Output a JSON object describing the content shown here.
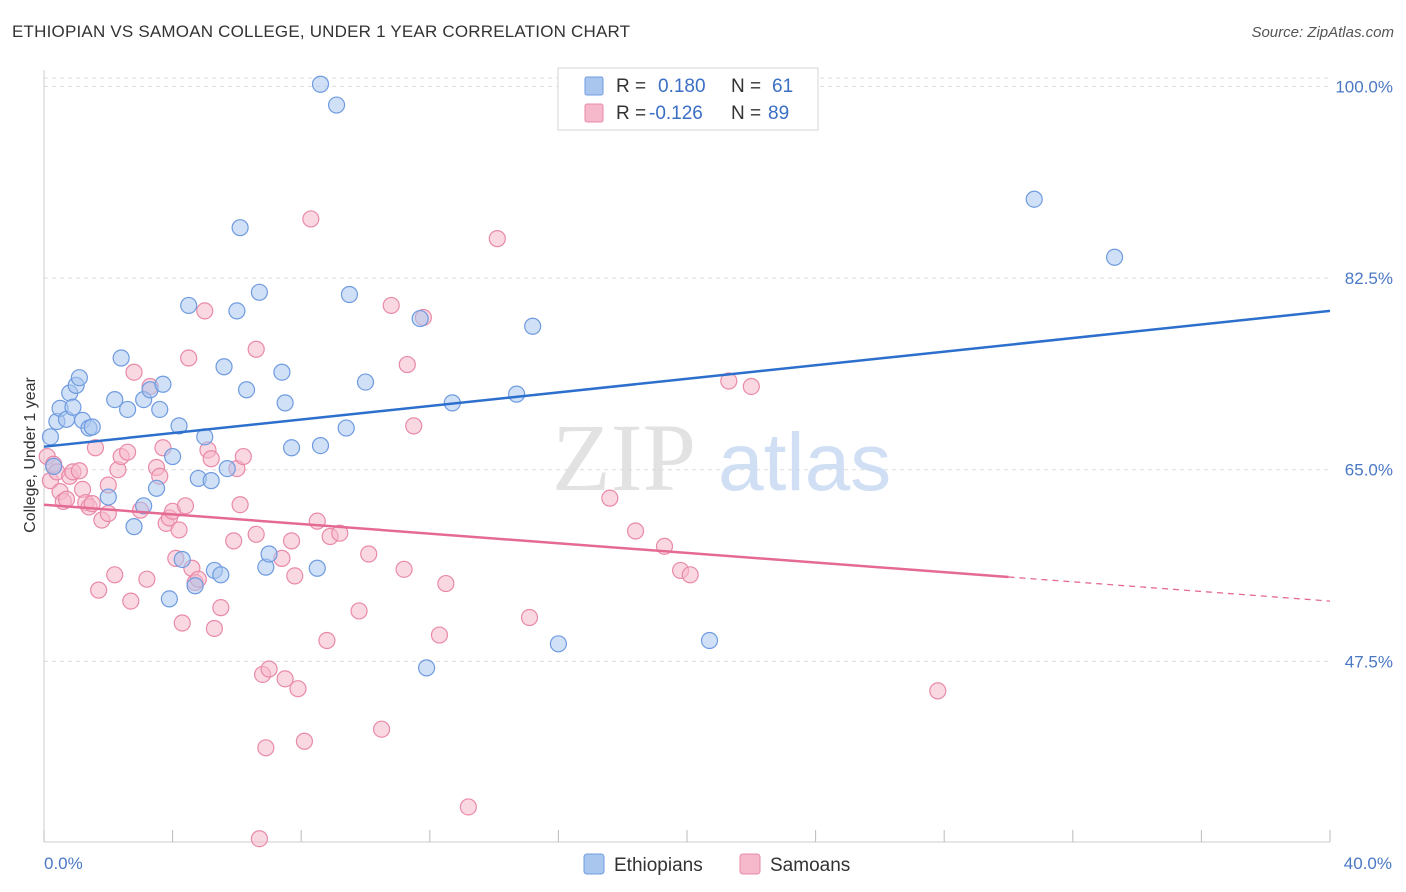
{
  "header": {
    "title": "ETHIOPIAN VS SAMOAN COLLEGE, UNDER 1 YEAR CORRELATION CHART",
    "source": "Source: ZipAtlas.com"
  },
  "watermark": {
    "zip": "ZIP",
    "atlas": "atlas"
  },
  "legend_top": {
    "rows": [
      {
        "r_label": "R =",
        "r_value": "0.180",
        "n_label": "N =",
        "n_value": "61",
        "color": "#a9c6ef",
        "stroke": "#6f9be0"
      },
      {
        "r_label": "R =",
        "r_value": "-0.126",
        "n_label": "N =",
        "n_value": "89",
        "color": "#f6b8cb",
        "stroke": "#e98aa8"
      }
    ]
  },
  "legend_bottom": {
    "items": [
      {
        "label": "Ethiopians",
        "color": "#a9c6ef",
        "stroke": "#6f9be0"
      },
      {
        "label": "Samoans",
        "color": "#f6b8cb",
        "stroke": "#e98aa8"
      }
    ]
  },
  "chart_data": {
    "type": "scatter",
    "xlabel": "",
    "ylabel": "College, Under 1 year",
    "xlim": [
      0,
      40
    ],
    "ylim": [
      31,
      101.5
    ],
    "x_tick_labels": [
      {
        "value": 0,
        "label": "0.0%"
      },
      {
        "value": 40,
        "label": "40.0%"
      }
    ],
    "x_minor_ticks": [
      0,
      4,
      8,
      12,
      16,
      20,
      24,
      28,
      32,
      36,
      40
    ],
    "y_ticks": [
      {
        "value": 100,
        "label": "100.0%"
      },
      {
        "value": 82.5,
        "label": "82.5%"
      },
      {
        "value": 65,
        "label": "65.0%"
      },
      {
        "value": 47.5,
        "label": "47.5%"
      }
    ],
    "grid": true,
    "legend_position": "top-center",
    "series": [
      {
        "name": "Ethiopians",
        "color": "#6f9be0",
        "fill": "#a9c6ef",
        "line_color": "#2c6fcd",
        "trend": {
          "x": [
            0,
            40
          ],
          "y": [
            67.1,
            79.5
          ],
          "dash_from": null
        },
        "points": [
          [
            0.2,
            68.0
          ],
          [
            0.3,
            65.3
          ],
          [
            0.4,
            69.4
          ],
          [
            0.5,
            70.6
          ],
          [
            0.7,
            69.6
          ],
          [
            0.8,
            72.0
          ],
          [
            0.9,
            70.7
          ],
          [
            1.0,
            72.7
          ],
          [
            1.1,
            73.4
          ],
          [
            1.2,
            69.5
          ],
          [
            1.4,
            68.8
          ],
          [
            1.5,
            68.9
          ],
          [
            2.0,
            62.5
          ],
          [
            2.2,
            71.4
          ],
          [
            2.4,
            75.2
          ],
          [
            2.6,
            70.5
          ],
          [
            2.8,
            59.8
          ],
          [
            3.1,
            71.4
          ],
          [
            3.1,
            61.7
          ],
          [
            3.3,
            72.3
          ],
          [
            3.5,
            63.3
          ],
          [
            3.6,
            70.5
          ],
          [
            3.7,
            72.8
          ],
          [
            3.9,
            53.2
          ],
          [
            4.0,
            66.2
          ],
          [
            4.2,
            69.0
          ],
          [
            4.3,
            56.8
          ],
          [
            4.5,
            80.0
          ],
          [
            4.7,
            54.4
          ],
          [
            4.8,
            64.2
          ],
          [
            5.0,
            68.0
          ],
          [
            5.2,
            64.0
          ],
          [
            5.3,
            55.8
          ],
          [
            5.5,
            55.4
          ],
          [
            5.6,
            74.4
          ],
          [
            5.7,
            65.1
          ],
          [
            6.0,
            79.5
          ],
          [
            6.1,
            87.1
          ],
          [
            6.3,
            72.3
          ],
          [
            6.7,
            81.2
          ],
          [
            6.9,
            56.1
          ],
          [
            7.0,
            57.3
          ],
          [
            7.4,
            73.9
          ],
          [
            7.5,
            71.1
          ],
          [
            7.7,
            67.0
          ],
          [
            8.5,
            56.0
          ],
          [
            8.6,
            67.2
          ],
          [
            8.6,
            100.2
          ],
          [
            9.1,
            98.3
          ],
          [
            9.4,
            68.8
          ],
          [
            9.5,
            81.0
          ],
          [
            10.0,
            73.0
          ],
          [
            11.7,
            78.8
          ],
          [
            11.9,
            46.9
          ],
          [
            12.7,
            71.1
          ],
          [
            14.7,
            71.9
          ],
          [
            15.2,
            78.1
          ],
          [
            16.0,
            49.1
          ],
          [
            20.7,
            49.4
          ],
          [
            30.8,
            89.7
          ],
          [
            33.3,
            84.4
          ]
        ]
      },
      {
        "name": "Samoans",
        "color": "#e98aa8",
        "fill": "#f6b8cb",
        "line_color": "#e56a93",
        "trend": {
          "x": [
            0,
            40
          ],
          "y": [
            61.8,
            53.0
          ],
          "dash_from": 30.0
        },
        "points": [
          [
            0.1,
            66.2
          ],
          [
            0.2,
            64.0
          ],
          [
            0.3,
            65.5
          ],
          [
            0.4,
            64.8
          ],
          [
            0.5,
            63.0
          ],
          [
            0.6,
            62.1
          ],
          [
            0.7,
            62.3
          ],
          [
            0.8,
            64.4
          ],
          [
            0.9,
            64.8
          ],
          [
            1.1,
            64.9
          ],
          [
            1.2,
            63.2
          ],
          [
            1.3,
            62.0
          ],
          [
            1.4,
            61.6
          ],
          [
            1.5,
            61.9
          ],
          [
            1.6,
            67.0
          ],
          [
            1.7,
            54.0
          ],
          [
            1.8,
            60.4
          ],
          [
            2.0,
            61.0
          ],
          [
            2.0,
            63.6
          ],
          [
            2.2,
            55.4
          ],
          [
            2.3,
            65.0
          ],
          [
            2.4,
            66.2
          ],
          [
            2.6,
            66.6
          ],
          [
            2.7,
            53.0
          ],
          [
            2.8,
            73.9
          ],
          [
            3.0,
            61.3
          ],
          [
            3.2,
            55.0
          ],
          [
            3.3,
            72.6
          ],
          [
            3.5,
            65.2
          ],
          [
            3.6,
            64.4
          ],
          [
            3.7,
            67.0
          ],
          [
            3.8,
            60.1
          ],
          [
            3.9,
            60.6
          ],
          [
            4.0,
            61.2
          ],
          [
            4.1,
            56.9
          ],
          [
            4.2,
            59.5
          ],
          [
            4.3,
            51.0
          ],
          [
            4.4,
            61.7
          ],
          [
            4.5,
            75.2
          ],
          [
            4.6,
            56.0
          ],
          [
            4.7,
            54.7
          ],
          [
            4.8,
            55.0
          ],
          [
            5.0,
            79.5
          ],
          [
            5.1,
            66.8
          ],
          [
            5.2,
            66.0
          ],
          [
            5.3,
            50.5
          ],
          [
            5.5,
            52.4
          ],
          [
            5.9,
            58.5
          ],
          [
            6.0,
            65.1
          ],
          [
            6.1,
            61.8
          ],
          [
            6.2,
            66.2
          ],
          [
            6.6,
            76.0
          ],
          [
            6.6,
            59.1
          ],
          [
            6.7,
            31.3
          ],
          [
            6.8,
            46.3
          ],
          [
            6.9,
            39.6
          ],
          [
            7.0,
            46.8
          ],
          [
            7.4,
            56.9
          ],
          [
            7.5,
            45.9
          ],
          [
            7.7,
            58.5
          ],
          [
            7.8,
            55.3
          ],
          [
            7.9,
            45.0
          ],
          [
            8.1,
            40.2
          ],
          [
            8.3,
            87.9
          ],
          [
            8.5,
            60.3
          ],
          [
            8.8,
            49.4
          ],
          [
            8.9,
            58.9
          ],
          [
            9.2,
            59.2
          ],
          [
            9.8,
            52.1
          ],
          [
            10.1,
            57.3
          ],
          [
            10.5,
            41.3
          ],
          [
            10.8,
            80.0
          ],
          [
            11.2,
            55.9
          ],
          [
            11.3,
            74.6
          ],
          [
            11.5,
            69.0
          ],
          [
            11.8,
            78.9
          ],
          [
            12.3,
            49.9
          ],
          [
            12.5,
            54.6
          ],
          [
            13.2,
            34.2
          ],
          [
            14.1,
            86.1
          ],
          [
            15.1,
            51.5
          ],
          [
            17.6,
            62.4
          ],
          [
            18.4,
            59.4
          ],
          [
            19.3,
            58.0
          ],
          [
            19.8,
            55.8
          ],
          [
            20.1,
            55.4
          ],
          [
            21.3,
            73.1
          ],
          [
            22.0,
            72.6
          ],
          [
            27.8,
            44.8
          ]
        ]
      }
    ]
  }
}
